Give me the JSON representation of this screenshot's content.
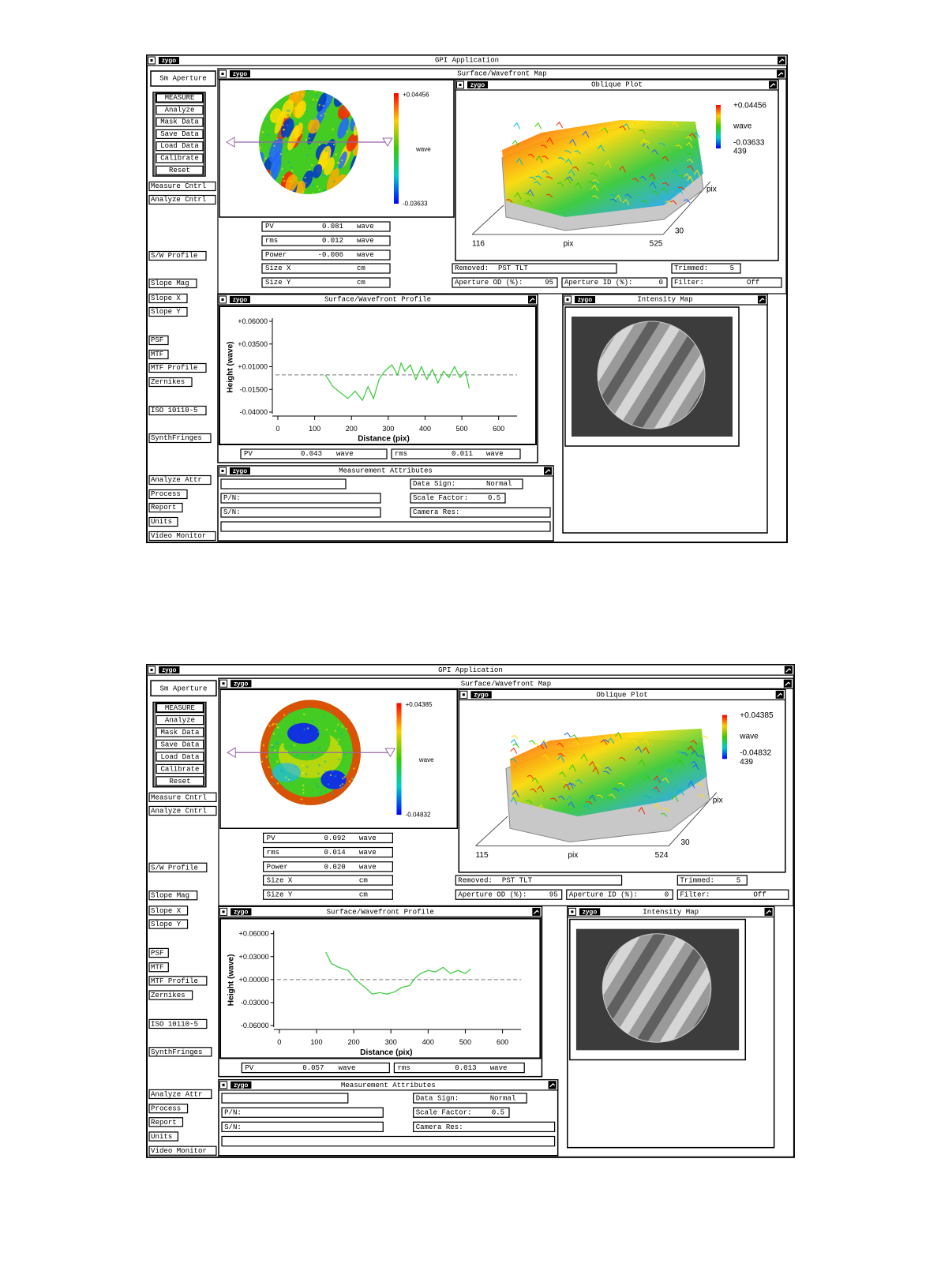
{
  "logo": "zygo",
  "screens": [
    {
      "app_title": "GPI Application",
      "aperture": "Sm Aperture",
      "buttons": [
        "MEASURE",
        "Analyze",
        "Mask Data",
        "Save Data",
        "Load Data",
        "Calibrate",
        "Reset"
      ],
      "side_buttons": [
        "Measure Cntrl",
        "Analyze Cntrl",
        "S/W Profile",
        "Slope Mag",
        "Slope X",
        "Slope Y",
        "PSF",
        "MTF",
        "MTF Profile",
        "Zernikes",
        "ISO 10110-5",
        "SynthFringes",
        "Analyze Attr",
        "Process",
        "Report",
        "Units",
        "Video Monitor"
      ],
      "map": {
        "title": "Surface/Wavefront Map",
        "scale_max": "+0.04456",
        "unit": "wave",
        "scale_min": "-0.03633"
      },
      "results": [
        {
          "label": "PV",
          "value": "0.081",
          "unit": "wave"
        },
        {
          "label": "rms",
          "value": "0.012",
          "unit": "wave"
        },
        {
          "label": "Power",
          "value": "-0.006",
          "unit": "wave"
        },
        {
          "label": "Size X",
          "unit": "cm"
        },
        {
          "label": "Size Y",
          "unit": "cm"
        }
      ],
      "oblique": {
        "title": "Oblique Plot",
        "scale_max": "+0.04456",
        "unit": "wave",
        "scale_min": "-0.03633",
        "count": "439",
        "y_axis": "pix",
        "y_value": "30",
        "x_left": "116",
        "x_axis": "pix",
        "x_right": "525"
      },
      "removed": {
        "label": "Removed:",
        "value": "PST TLT"
      },
      "trimmed": {
        "label": "Trimmed:",
        "value": "5"
      },
      "aperture_od": {
        "label": "Aperture OD (%):",
        "value": "95"
      },
      "aperture_id": {
        "label": "Aperture ID (%):",
        "value": "0"
      },
      "filter": {
        "label": "Filter:",
        "value": "Off"
      },
      "profile_results": [
        {
          "label": "PV",
          "value": "0.043",
          "unit": "wave"
        },
        {
          "label": "rms",
          "value": "0.011",
          "unit": "wave"
        }
      ],
      "intensity_title": "Intensity Map",
      "attributes": {
        "title": "Measurement Attributes",
        "part_number": "P/N:",
        "serial_number": "S/N:",
        "data_sign": {
          "label": "Data Sign:",
          "value": "Normal"
        },
        "scale_factor": {
          "label": "Scale Factor:",
          "value": "0.5"
        },
        "camera_res": {
          "label": "Camera Res:"
        }
      }
    },
    {
      "app_title": "GPI Application",
      "aperture": "Sm Aperture",
      "buttons": [
        "MEASURE",
        "Analyze",
        "Mask Data",
        "Save Data",
        "Load Data",
        "Calibrate",
        "Reset"
      ],
      "side_buttons": [
        "Measure Cntrl",
        "Analyze Cntrl",
        "S/W Profile",
        "Slope Mag",
        "Slope X",
        "Slope Y",
        "PSF",
        "MTF",
        "MTF Profile",
        "Zernikes",
        "ISO 10110-5",
        "SynthFringes",
        "Analyze Attr",
        "Process",
        "Report",
        "Units",
        "Video Monitor"
      ],
      "map": {
        "title": "Surface/Wavefront Map",
        "scale_max": "+0.04385",
        "unit": "wave",
        "scale_min": "-0.04832"
      },
      "results": [
        {
          "label": "PV",
          "value": "0.092",
          "unit": "wave"
        },
        {
          "label": "rms",
          "value": "0.014",
          "unit": "wave"
        },
        {
          "label": "Power",
          "value": "0.020",
          "unit": "wave"
        },
        {
          "label": "Size X",
          "unit": "cm"
        },
        {
          "label": "Size Y",
          "unit": "cm"
        }
      ],
      "oblique": {
        "title": "Oblique Plot",
        "scale_max": "+0.04385",
        "unit": "wave",
        "scale_min": "-0.04832",
        "count": "439",
        "y_axis": "pix",
        "y_value": "30",
        "x_left": "115",
        "x_axis": "pix",
        "x_right": "524"
      },
      "removed": {
        "label": "Removed:",
        "value": "PST TLT"
      },
      "trimmed": {
        "label": "Trimmed:",
        "value": "5"
      },
      "aperture_od": {
        "label": "Aperture OD (%):",
        "value": "95"
      },
      "aperture_id": {
        "label": "Aperture ID (%):",
        "value": "0"
      },
      "filter": {
        "label": "Filter:",
        "value": "Off"
      },
      "profile_results": [
        {
          "label": "PV",
          "value": "0.057",
          "unit": "wave"
        },
        {
          "label": "rms",
          "value": "0.013",
          "unit": "wave"
        }
      ],
      "intensity_title": "Intensity Map",
      "attributes": {
        "title": "Measurement Attributes",
        "part_number": "P/N:",
        "serial_number": "S/N:",
        "data_sign": {
          "label": "Data Sign:",
          "value": "Normal"
        },
        "scale_factor": {
          "label": "Scale Factor:",
          "value": "0.5"
        },
        "camera_res": {
          "label": "Camera Res:"
        }
      }
    }
  ],
  "chart_data": [
    {
      "type": "line",
      "title": "Surface/Wavefront Profile",
      "x_label": "Distance (pix)",
      "y_label": "Height (wave)",
      "xlim": [
        -15,
        650
      ],
      "xticks": [
        0,
        100,
        200,
        300,
        400,
        500,
        600
      ],
      "ylim": [
        -0.04,
        0.06
      ],
      "yticks": [
        {
          "value": 0.06,
          "label": "+0.06000"
        },
        {
          "value": 0.035,
          "label": "+0.03500"
        },
        {
          "value": 0.01,
          "label": "+0.01000"
        },
        {
          "value": -0.015,
          "label": "-0.01500"
        },
        {
          "value": -0.04,
          "label": "-0.04000"
        }
      ],
      "reference_line": 0.001,
      "x": [
        129,
        150,
        190,
        210,
        230,
        245,
        260,
        275,
        290,
        310,
        325,
        335,
        345,
        360,
        375,
        390,
        405,
        420,
        435,
        450,
        465,
        480,
        495,
        510,
        520
      ],
      "series": [
        {
          "color": "#33cc33",
          "values": [
            0.001,
            -0.012,
            -0.025,
            -0.017,
            -0.027,
            -0.012,
            -0.025,
            -0.004,
            0.005,
            0.012,
            0.001,
            0.014,
            0.005,
            0.012,
            -0.004,
            0.01,
            -0.004,
            0.007,
            -0.008,
            0.005,
            -0.002,
            0.01,
            -0.002,
            0.005,
            -0.014
          ]
        }
      ]
    },
    {
      "type": "line",
      "title": "Surface/Wavefront Profile",
      "x_label": "Distance (pix)",
      "y_label": "Height (wave)",
      "xlim": [
        -15,
        650
      ],
      "xticks": [
        0,
        100,
        200,
        300,
        400,
        500,
        600
      ],
      "ylim": [
        -0.06,
        0.06
      ],
      "yticks": [
        {
          "value": 0.06,
          "label": "+0.06000"
        },
        {
          "value": 0.03,
          "label": "+0.03000"
        },
        {
          "value": 0,
          "label": "+0.00000"
        },
        {
          "value": -0.03,
          "label": "-0.03000"
        },
        {
          "value": -0.06,
          "label": "-0.06000"
        }
      ],
      "reference_line": 0,
      "x": [
        125,
        140,
        160,
        185,
        205,
        230,
        250,
        270,
        290,
        310,
        330,
        350,
        365,
        380,
        400,
        420,
        440,
        460,
        480,
        500,
        515
      ],
      "series": [
        {
          "color": "#33cc33",
          "values": [
            0.036,
            0.021,
            0.016,
            0.012,
            0,
            -0.01,
            -0.019,
            -0.017,
            -0.019,
            -0.016,
            -0.01,
            -0.008,
            0.002,
            0.008,
            0.012,
            0.01,
            0.016,
            0.008,
            0.012,
            0.008,
            0.014
          ]
        }
      ]
    }
  ]
}
